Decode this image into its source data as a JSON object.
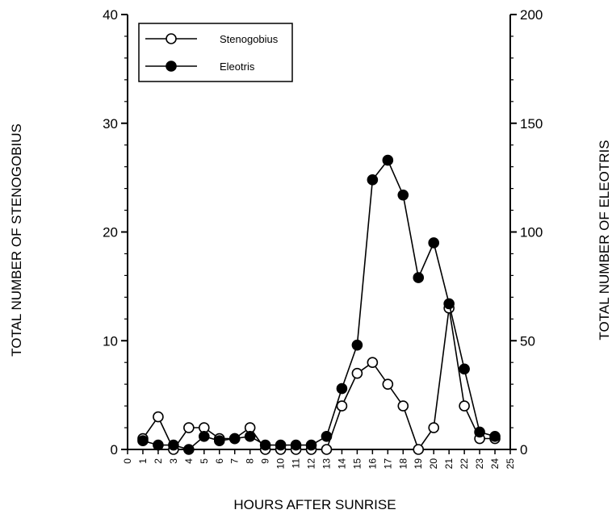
{
  "chart_data": {
    "type": "line",
    "xlabel": "HOURS AFTER SUNRISE",
    "ylabel_left": "TOTAL NUMBER OF STENOGOBIUS",
    "ylabel_right": "TOTAL NUMBER OF ELEOTRIS",
    "xlim": [
      0,
      25
    ],
    "ylim_left": [
      0,
      40
    ],
    "ylim_right": [
      0,
      200
    ],
    "x_ticks": [
      "0",
      "1",
      "2",
      "3",
      "4",
      "5",
      "6",
      "7",
      "8",
      "9",
      "10",
      "11",
      "12",
      "13",
      "14",
      "15",
      "16",
      "17",
      "18",
      "19",
      "20",
      "21",
      "22",
      "23",
      "24",
      "25"
    ],
    "y_left_ticks": [
      "0",
      "10",
      "20",
      "30",
      "40"
    ],
    "y_right_ticks": [
      "0",
      "50",
      "100",
      "150",
      "200"
    ],
    "grid": false,
    "legend_position": "top-left",
    "series": [
      {
        "name": "Stenogobius",
        "axis": "left",
        "marker": "open-circle",
        "x": [
          1,
          2,
          3,
          4,
          5,
          6,
          7,
          8,
          9,
          10,
          11,
          12,
          13,
          14,
          15,
          16,
          17,
          18,
          19,
          20,
          21,
          22,
          23,
          24
        ],
        "y": [
          1,
          3,
          0,
          2,
          2,
          1,
          1,
          2,
          0,
          0,
          0,
          0,
          0,
          4,
          7,
          8,
          6,
          4,
          0,
          2,
          13,
          4,
          1,
          1
        ]
      },
      {
        "name": "Eleotris",
        "axis": "right",
        "marker": "filled-circle",
        "x": [
          1,
          2,
          3,
          4,
          5,
          6,
          7,
          8,
          9,
          10,
          11,
          12,
          13,
          14,
          15,
          16,
          17,
          18,
          19,
          20,
          21,
          22,
          23,
          24
        ],
        "y": [
          4,
          2,
          2,
          0,
          6,
          4,
          5,
          6,
          2,
          2,
          2,
          2,
          6,
          28,
          48,
          124,
          133,
          117,
          79,
          95,
          67,
          37,
          8,
          6
        ]
      }
    ]
  }
}
